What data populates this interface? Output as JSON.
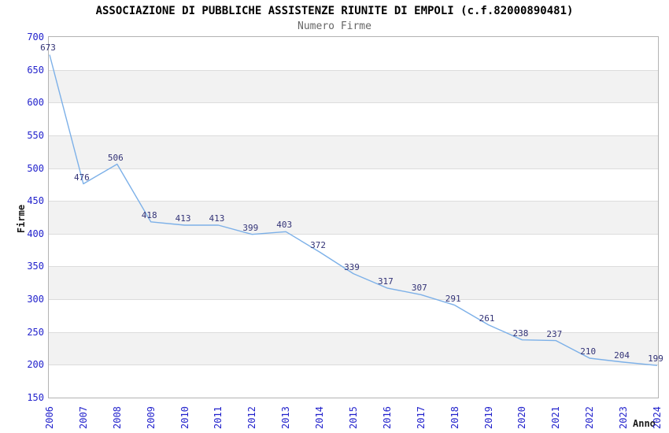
{
  "chart_data": {
    "type": "line",
    "title": "ASSOCIAZIONE DI PUBBLICHE ASSISTENZE RIUNITE DI EMPOLI (c.f.82000890481)",
    "subtitle": "Numero Firme",
    "xlabel": "Anno",
    "ylabel": "Firme",
    "x": [
      "2006",
      "2007",
      "2008",
      "2009",
      "2010",
      "2011",
      "2012",
      "2013",
      "2014",
      "2015",
      "2016",
      "2017",
      "2018",
      "2019",
      "2020",
      "2021",
      "2022",
      "2023",
      "2024"
    ],
    "values": [
      673,
      476,
      506,
      418,
      413,
      413,
      399,
      403,
      372,
      339,
      317,
      307,
      291,
      261,
      238,
      237,
      210,
      204,
      199
    ],
    "ylim": [
      150,
      700
    ],
    "ytick_step": 50,
    "grid": true,
    "legend": "none",
    "point_labels_shown": true,
    "colors": {
      "line": "#7cb0e8",
      "tick_label": "#2222cc",
      "point_label": "#333377",
      "band": "#f2f2f2",
      "gridline": "#dcdcdc",
      "frame": "#b3b3b3",
      "title": "#000000",
      "subtitle": "#666666",
      "axis_title": "#1a1a1a"
    }
  }
}
